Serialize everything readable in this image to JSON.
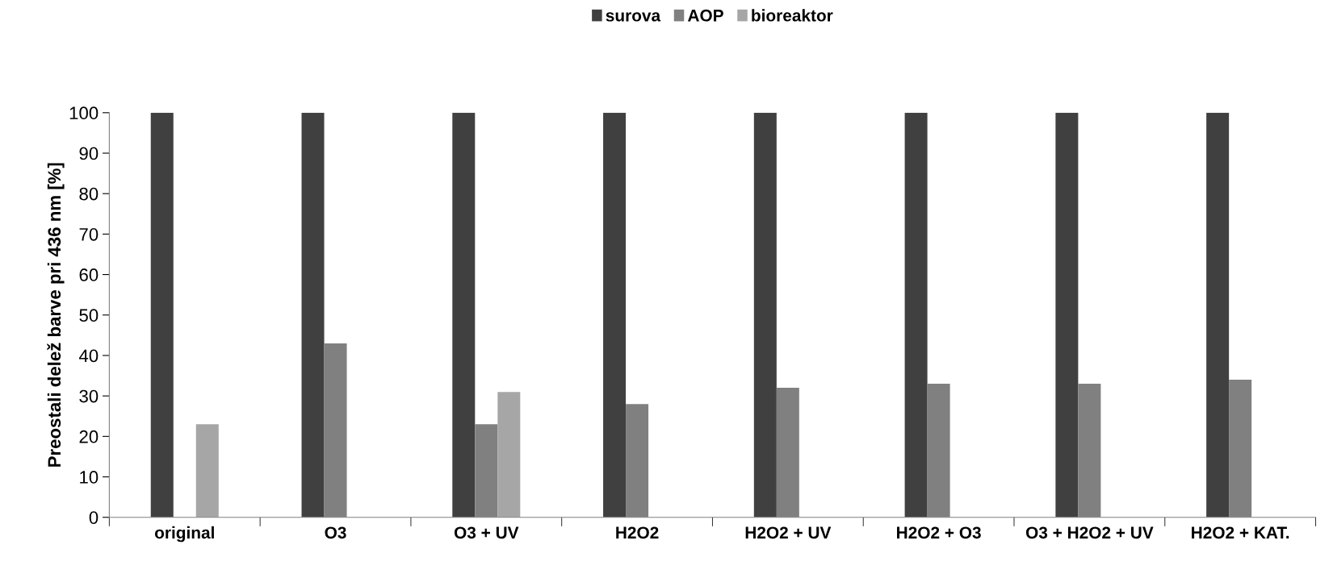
{
  "chart_data": {
    "type": "bar",
    "ylabel": "Preostali delež barve pri 436 nm [%]",
    "categories": [
      "original",
      "O3",
      "O3 + UV",
      "H2O2",
      "H2O2 + UV",
      "H2O2 + O3",
      "O3 + H2O2 + UV",
      "H2O2 + KAT."
    ],
    "series": [
      {
        "name": "surova",
        "color": "#404040",
        "values": [
          100,
          100,
          100,
          100,
          100,
          100,
          100,
          100
        ]
      },
      {
        "name": "AOP",
        "color": "#808080",
        "values": [
          null,
          43,
          23,
          28,
          32,
          33,
          33,
          34
        ]
      },
      {
        "name": "bioreaktor",
        "color": "#a6a6a6",
        "values": [
          23,
          null,
          31,
          null,
          null,
          null,
          null,
          null
        ]
      }
    ],
    "ylim": [
      0,
      100
    ],
    "yticks": [
      0,
      10,
      20,
      30,
      40,
      50,
      60,
      70,
      80,
      90,
      100
    ],
    "grid": false,
    "legend": "top"
  }
}
